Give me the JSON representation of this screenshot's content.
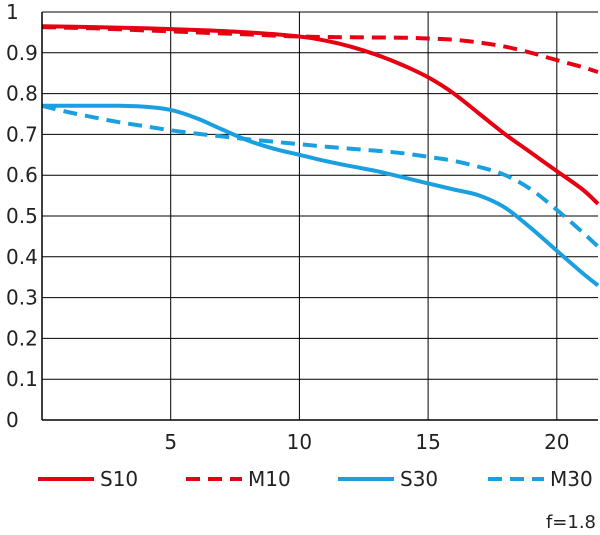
{
  "chart_data": {
    "type": "line",
    "title": "",
    "xlabel": "",
    "ylabel": "",
    "xlim": [
      0,
      21.6
    ],
    "ylim": [
      0,
      1
    ],
    "grid": true,
    "legend_position": "bottom",
    "x_ticks": [
      {
        "value": 5,
        "label": "5"
      },
      {
        "value": 10,
        "label": "10"
      },
      {
        "value": 15,
        "label": "15"
      },
      {
        "value": 20,
        "label": "20"
      }
    ],
    "y_ticks": [
      {
        "value": 0,
        "label": "0"
      },
      {
        "value": 0.1,
        "label": "0.1"
      },
      {
        "value": 0.2,
        "label": "0.2"
      },
      {
        "value": 0.3,
        "label": "0.3"
      },
      {
        "value": 0.4,
        "label": "0.4"
      },
      {
        "value": 0.5,
        "label": "0.5"
      },
      {
        "value": 0.6,
        "label": "0.6"
      },
      {
        "value": 0.7,
        "label": "0.7"
      },
      {
        "value": 0.8,
        "label": "0.8"
      },
      {
        "value": 0.9,
        "label": "0.9"
      },
      {
        "value": 1,
        "label": "1"
      }
    ],
    "series": [
      {
        "name": "S10",
        "color": "#e60012",
        "dash": "solid",
        "x": [
          0,
          2,
          4,
          6,
          8,
          10,
          11,
          12,
          13,
          14,
          15,
          16,
          17,
          18,
          19,
          20,
          21,
          21.6
        ],
        "values": [
          0.965,
          0.963,
          0.96,
          0.956,
          0.95,
          0.94,
          0.93,
          0.915,
          0.895,
          0.87,
          0.84,
          0.8,
          0.75,
          0.7,
          0.655,
          0.61,
          0.565,
          0.53
        ]
      },
      {
        "name": "M10",
        "color": "#e60012",
        "dash": "dashed",
        "x": [
          0,
          2,
          4,
          6,
          8,
          10,
          12,
          14,
          15,
          16,
          17,
          18,
          19,
          20,
          21,
          21.6
        ],
        "values": [
          0.963,
          0.96,
          0.955,
          0.95,
          0.945,
          0.94,
          0.938,
          0.937,
          0.935,
          0.932,
          0.925,
          0.915,
          0.9,
          0.882,
          0.865,
          0.853
        ]
      },
      {
        "name": "S30",
        "color": "#1aa0e0",
        "dash": "solid",
        "x": [
          0,
          1,
          2,
          3,
          4,
          5,
          6,
          7,
          8,
          9,
          10,
          11,
          12,
          13,
          14,
          15,
          16,
          17,
          18,
          19,
          20,
          21,
          21.6
        ],
        "values": [
          0.77,
          0.77,
          0.77,
          0.77,
          0.768,
          0.76,
          0.74,
          0.712,
          0.685,
          0.665,
          0.65,
          0.635,
          0.622,
          0.61,
          0.595,
          0.58,
          0.565,
          0.55,
          0.52,
          0.47,
          0.415,
          0.36,
          0.33
        ]
      },
      {
        "name": "M30",
        "color": "#1aa0e0",
        "dash": "dashed",
        "x": [
          0,
          1,
          2,
          3,
          4,
          5,
          6,
          7,
          8,
          9,
          10,
          11,
          12,
          13,
          14,
          15,
          16,
          17,
          18,
          19,
          20,
          21,
          21.6
        ],
        "values": [
          0.77,
          0.755,
          0.742,
          0.73,
          0.72,
          0.71,
          0.702,
          0.695,
          0.688,
          0.682,
          0.676,
          0.67,
          0.665,
          0.66,
          0.654,
          0.645,
          0.635,
          0.62,
          0.6,
          0.565,
          0.515,
          0.46,
          0.425
        ]
      }
    ],
    "note": "f=1.8"
  }
}
